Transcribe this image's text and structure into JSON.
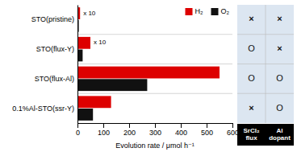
{
  "chart_data": {
    "type": "bar",
    "orientation": "horizontal",
    "categories": [
      "0.1%Al-STO(ssr-Y)",
      "STO(flux-Al)",
      "STO(flux-Y)",
      "STO(pristine)"
    ],
    "series": [
      {
        "name": "H₂",
        "color": "#dd0000",
        "values": [
          130,
          550,
          50,
          10
        ]
      },
      {
        "name": "O₂",
        "color": "#111111",
        "values": [
          60,
          270,
          20,
          5
        ]
      }
    ],
    "xlabel": "Evolution rate / μmol h⁻¹",
    "xlim": [
      0,
      600
    ],
    "xticks": [
      0,
      100,
      200,
      300,
      400,
      500,
      600
    ],
    "legend": "upper right",
    "annotations": [
      {
        "text": "x 10",
        "category": "STO(flux-Y)",
        "series": "H₂"
      },
      {
        "text": "x 10",
        "category": "STO(pristine)",
        "series": "H₂"
      }
    ],
    "table": {
      "columns": [
        "SrCl₂\nflux",
        "Al\ndopant"
      ],
      "rows": [
        [
          "×",
          "O"
        ],
        [
          "O",
          "O"
        ],
        [
          "O",
          "×"
        ],
        [
          "×",
          "×"
        ]
      ]
    }
  }
}
